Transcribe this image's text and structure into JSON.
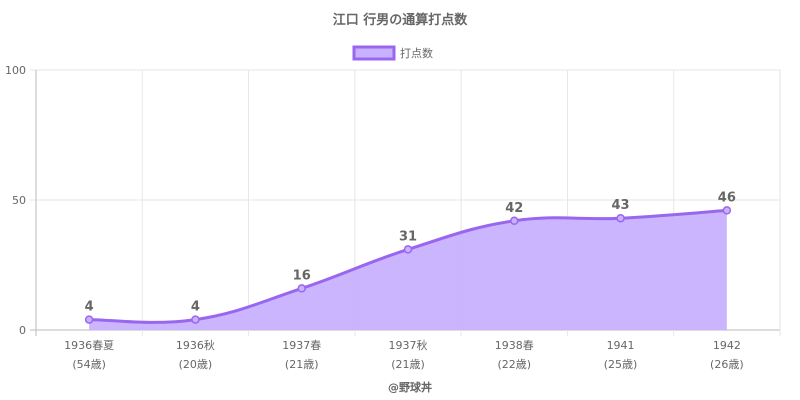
{
  "chart_data": {
    "type": "area",
    "title": "江口 行男の通算打点数",
    "legend": {
      "position": "top",
      "entries": [
        "打点数"
      ]
    },
    "categories": [
      [
        "1936春夏",
        "(54歳)"
      ],
      [
        "1936秋",
        "(20歳)"
      ],
      [
        "1937春",
        "(21歳)"
      ],
      [
        "1937秋",
        "(21歳)"
      ],
      [
        "1938春",
        "(22歳)"
      ],
      [
        "1941",
        "(25歳)"
      ],
      [
        "1942",
        "(26歳)"
      ]
    ],
    "series": [
      {
        "name": "打点数",
        "values": [
          4,
          4,
          16,
          31,
          42,
          43,
          46
        ]
      }
    ],
    "ylim": [
      0,
      100
    ],
    "yticks": [
      0,
      50,
      100
    ],
    "grid": true,
    "footer": "@野球丼",
    "colors": {
      "line": "#9966ee",
      "fill": "#c8b1ff",
      "grid": "#e6e6e6",
      "axis": "#bbbbbb",
      "text": "#666666"
    }
  }
}
